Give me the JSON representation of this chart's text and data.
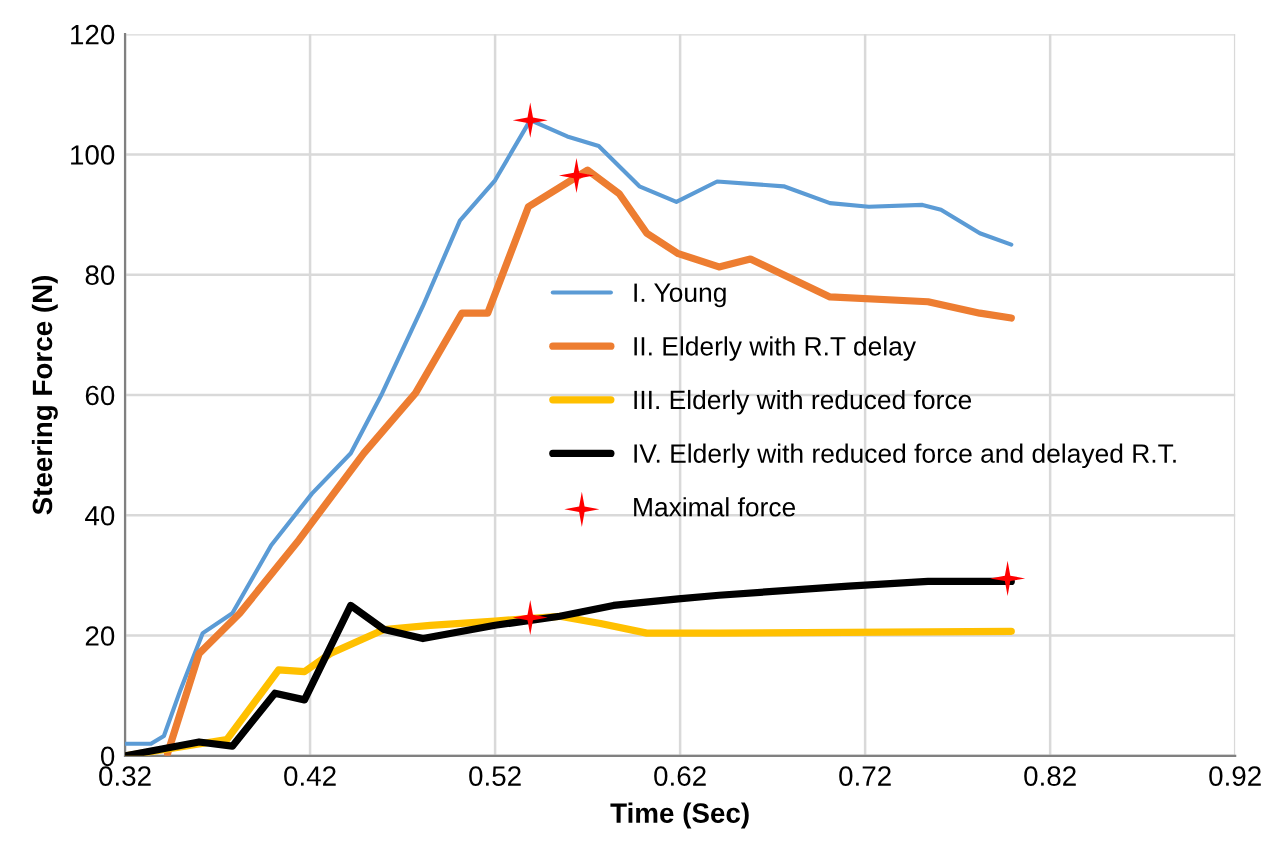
{
  "chart_data": {
    "type": "line",
    "xlabel": "Time (Sec)",
    "ylabel": "Steering Force (N)",
    "xlim": [
      0.32,
      0.92
    ],
    "xticks": [
      {
        "value": 0.32,
        "label": "0.32"
      },
      {
        "value": 0.42,
        "label": "0.42"
      },
      {
        "value": 0.52,
        "label": "0.52"
      },
      {
        "value": 0.62,
        "label": "0.62"
      },
      {
        "value": 0.72,
        "label": "0.72"
      },
      {
        "value": 0.82,
        "label": "0.82"
      },
      {
        "value": 0.92,
        "label": "0.92"
      }
    ],
    "ylim": [
      0,
      120
    ],
    "yticks": [
      0,
      20,
      40,
      60,
      80,
      100,
      120
    ],
    "grid": true,
    "legend": "center right",
    "marker": "none",
    "line_style": "solid",
    "series": [
      {
        "name": "I. Young",
        "color": "#5b9bd5",
        "x": [
          0.32,
          0.334,
          0.341,
          0.35,
          0.362,
          0.378,
          0.399,
          0.421,
          0.442,
          0.459,
          0.481,
          0.501,
          0.52,
          0.539,
          0.559,
          0.576,
          0.598,
          0.618,
          0.64,
          0.676,
          0.701,
          0.722,
          0.751,
          0.761,
          0.782,
          0.799
        ],
        "values": [
          2,
          2,
          3.3,
          11,
          20.4,
          23.7,
          35,
          43.6,
          50.3,
          60.3,
          74.8,
          89,
          95.7,
          105.7,
          103,
          101.4,
          94.7,
          92.1,
          95.5,
          94.7,
          91.9,
          91.3,
          91.6,
          90.8,
          86.9,
          85
        ]
      },
      {
        "name": "II. Elderly with R.T delay",
        "color": "#ed7d31",
        "x": [
          0.343,
          0.36,
          0.382,
          0.414,
          0.449,
          0.477,
          0.502,
          0.516,
          0.538,
          0.57,
          0.587,
          0.602,
          0.619,
          0.641,
          0.658,
          0.701,
          0.754,
          0.782,
          0.799
        ],
        "values": [
          0.4,
          17,
          23.7,
          35.9,
          50.3,
          60.3,
          73.6,
          73.6,
          91.3,
          97.4,
          93.5,
          86.9,
          83.5,
          81.3,
          82.6,
          76.3,
          75.5,
          73.6,
          72.8
        ]
      },
      {
        "name": "III. Elderly with reduced force",
        "color": "#ffc000",
        "x": [
          0.32,
          0.375,
          0.403,
          0.417,
          0.431,
          0.46,
          0.485,
          0.52,
          0.555,
          0.577,
          0.602,
          0.618,
          0.641,
          0.799
        ],
        "values": [
          0,
          2.7,
          14.3,
          14,
          17,
          21,
          21.7,
          22.4,
          23.2,
          22,
          20.4,
          20.4,
          20.4,
          20.7
        ]
      },
      {
        "name": "IV. Elderly with reduced force and delayed R.T.",
        "color": "#000000",
        "x": [
          0.32,
          0.36,
          0.378,
          0.401,
          0.417,
          0.442,
          0.46,
          0.481,
          0.52,
          0.555,
          0.584,
          0.619,
          0.641,
          0.711,
          0.754,
          0.799
        ],
        "values": [
          0,
          2.3,
          1.6,
          10.4,
          9.3,
          25,
          21,
          19.5,
          21.7,
          23.2,
          25,
          26.1,
          26.7,
          28.2,
          29,
          29
        ]
      },
      {
        "name": "Maximal force",
        "type": "scatter",
        "marker": "star",
        "color": "#ff0000",
        "x": [
          0.539,
          0.564,
          0.539,
          0.797
        ],
        "values": [
          105.7,
          96.5,
          23,
          29.5
        ]
      }
    ]
  }
}
